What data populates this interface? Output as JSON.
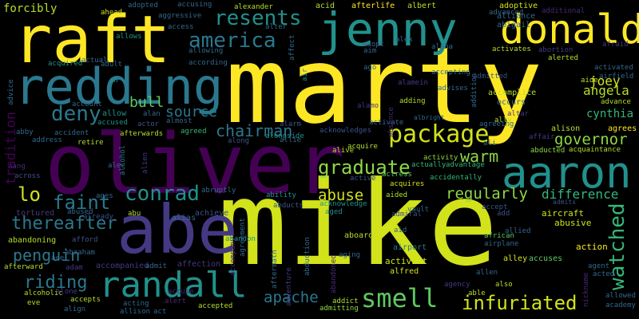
{
  "word_cloud": {
    "words": [
      "marty",
      "mike",
      "oliver",
      "raft",
      "redding",
      "abe",
      "jenny",
      "donald",
      "aaron",
      "randall",
      "america",
      "resents",
      "conrad",
      "smell",
      "graduate",
      "package",
      "deny",
      "faint",
      "infuriated",
      "apache",
      "angela",
      "regularly",
      "watched",
      "governor",
      "chairman",
      "abuse",
      "riding",
      "thereafter",
      "difference",
      "penguin",
      "joey",
      "warm",
      "lo",
      "bull",
      "source",
      "cynthia",
      "tradition",
      "forcibly",
      "aircraft",
      "abusive",
      "action",
      "accuses",
      "alley",
      "activist",
      "alfred",
      "airport",
      "aboard",
      "abandon",
      "affection",
      "accompanied",
      "abandoning",
      "afford",
      "tortured",
      "abused",
      "already",
      "alias",
      "achieve",
      "abruptly",
      "ability",
      "abducts",
      "acknowledge",
      "aged",
      "vault",
      "admiral",
      "aid",
      "accept",
      "add",
      "admits",
      "alison",
      "agrees",
      "abducted",
      "acquaintance",
      "alive",
      "acquire",
      "activity",
      "actually",
      "advantage",
      "accidentally",
      "acquires",
      "aided",
      "active",
      "actress",
      "agreeing",
      "ally",
      "altar",
      "occurs",
      "accomplice",
      "advises",
      "albright",
      "adding",
      "activate",
      "acknowledges",
      "alarm",
      "alongside",
      "allie",
      "along",
      "agreed",
      "almost",
      "alan",
      "actor",
      "allow",
      "accused",
      "account",
      "abby",
      "accident",
      "address",
      "retire",
      "afterwards",
      "alcohol",
      "alien",
      "alec",
      "across",
      "aang",
      "advice",
      "ah",
      "adult",
      "actual",
      "acquired",
      "allows",
      "afterlife",
      "aggressive",
      "access",
      "adopted",
      "accusing",
      "alexander",
      "acid",
      "albert",
      "adoptive",
      "alliance",
      "abigail",
      "advanced",
      "additional",
      "ahead",
      "alter",
      "allowing",
      "according",
      "ago",
      "alpha",
      "accepting",
      "adopt",
      "alex",
      "aim",
      "affect",
      "air",
      "activates",
      "abortion",
      "alerted",
      "affair",
      "ali",
      "advance",
      "aide",
      "airfield",
      "activated",
      "afraid",
      "admitted",
      "addition",
      "alamein",
      "absence",
      "alamo",
      "adventure",
      "admitting",
      "addict",
      "alert",
      "acting",
      "allison",
      "accepts",
      "align",
      "eve",
      "alcoholic",
      "afterward",
      "adam",
      "abraham",
      "ace",
      "accompany",
      "agreement",
      "aftermath",
      "abandoned",
      "abduction",
      "aging",
      "admit",
      "act",
      "accepted",
      "able",
      "agency",
      "also",
      "allen",
      "allowed",
      "academy",
      "nickname",
      "agent",
      "african",
      "airplane",
      "alone",
      "abu",
      "ages",
      "allied",
      "accuse",
      "acted"
    ]
  }
}
